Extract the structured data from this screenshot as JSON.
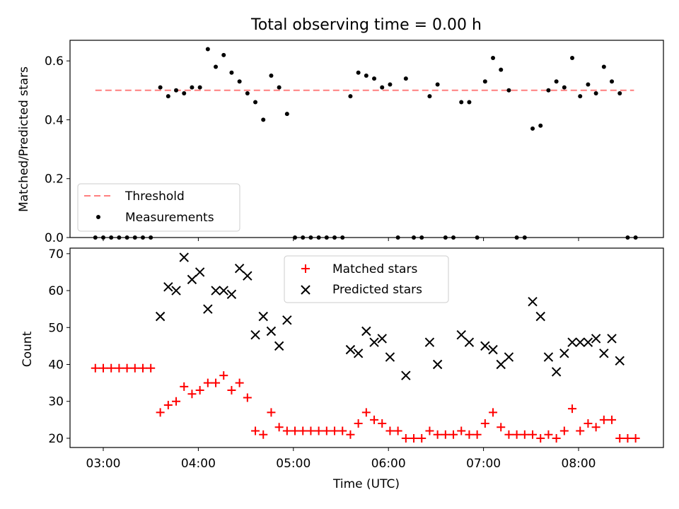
{
  "title": "Total observing time = 0.00 h",
  "chart_data": [
    {
      "type": "scatter",
      "ylabel": "Matched/Predicted stars",
      "ylim": [
        0,
        0.67
      ],
      "yticks": [
        0.0,
        0.2,
        0.4,
        0.6
      ],
      "ytick_labels": [
        "0.0",
        "0.2",
        "0.4",
        "0.6"
      ],
      "legend_position": "lower-left",
      "threshold": {
        "name": "Threshold",
        "value": 0.5,
        "x_start": "02:55",
        "x_end": "08:35",
        "color": "#ff7f7f"
      },
      "series": [
        {
          "name": "Measurements",
          "color": "#000000",
          "x": [
            "02:55",
            "03:00",
            "03:05",
            "03:10",
            "03:15",
            "03:20",
            "03:25",
            "03:30",
            "03:36",
            "03:41",
            "03:46",
            "03:51",
            "03:56",
            "04:01",
            "04:06",
            "04:11",
            "04:16",
            "04:21",
            "04:26",
            "04:31",
            "04:36",
            "04:41",
            "04:46",
            "04:51",
            "04:56",
            "05:01",
            "05:06",
            "05:11",
            "05:16",
            "05:21",
            "05:26",
            "05:31",
            "05:36",
            "05:41",
            "05:46",
            "05:51",
            "05:56",
            "06:01",
            "06:06",
            "06:11",
            "06:16",
            "06:21",
            "06:26",
            "06:31",
            "06:36",
            "06:41",
            "06:46",
            "06:51",
            "06:56",
            "07:01",
            "07:06",
            "07:11",
            "07:16",
            "07:21",
            "07:26",
            "07:31",
            "07:36",
            "07:41",
            "07:46",
            "07:51",
            "07:56",
            "08:01",
            "08:06",
            "08:11",
            "08:16",
            "08:21",
            "08:26",
            "08:31",
            "08:36"
          ],
          "y": [
            0.0,
            0.0,
            0.0,
            0.0,
            0.0,
            0.0,
            0.0,
            0.0,
            0.51,
            0.48,
            0.5,
            0.49,
            0.51,
            0.51,
            0.64,
            0.58,
            0.62,
            0.56,
            0.53,
            0.49,
            0.46,
            0.4,
            0.55,
            0.51,
            0.42,
            0.0,
            0.0,
            0.0,
            0.0,
            0.0,
            0.0,
            0.0,
            0.48,
            0.56,
            0.55,
            0.54,
            0.51,
            0.52,
            0.0,
            0.54,
            0.0,
            0.0,
            0.48,
            0.52,
            0.0,
            0.0,
            0.46,
            0.46,
            0.0,
            0.53,
            0.61,
            0.57,
            0.5,
            0.0,
            0.0,
            0.37,
            0.38,
            0.5,
            0.53,
            0.51,
            0.61,
            0.48,
            0.52,
            0.49,
            0.58,
            0.53,
            0.49,
            0.0,
            0.0
          ]
        }
      ]
    },
    {
      "type": "scatter",
      "xlabel": "Time (UTC)",
      "ylabel": "Count",
      "ylim": [
        17.5,
        71.5
      ],
      "yticks": [
        20,
        30,
        40,
        50,
        60,
        70
      ],
      "ytick_labels": [
        "20",
        "30",
        "40",
        "50",
        "60",
        "70"
      ],
      "x_ticks": [
        "03:00",
        "04:00",
        "05:00",
        "06:00",
        "07:00",
        "08:00"
      ],
      "legend_position": "upper-center",
      "series": [
        {
          "name": "Matched stars",
          "marker": "plus",
          "color": "#ff0000",
          "x": [
            "02:55",
            "03:00",
            "03:05",
            "03:10",
            "03:15",
            "03:20",
            "03:25",
            "03:30",
            "03:36",
            "03:41",
            "03:46",
            "03:51",
            "03:56",
            "04:01",
            "04:06",
            "04:11",
            "04:16",
            "04:21",
            "04:26",
            "04:31",
            "04:36",
            "04:41",
            "04:46",
            "04:51",
            "04:56",
            "05:01",
            "05:06",
            "05:11",
            "05:16",
            "05:21",
            "05:26",
            "05:31",
            "05:36",
            "05:41",
            "05:46",
            "05:51",
            "05:56",
            "06:01",
            "06:06",
            "06:11",
            "06:16",
            "06:21",
            "06:26",
            "06:31",
            "06:36",
            "06:41",
            "06:46",
            "06:51",
            "06:56",
            "07:01",
            "07:06",
            "07:11",
            "07:16",
            "07:21",
            "07:26",
            "07:31",
            "07:36",
            "07:41",
            "07:46",
            "07:51",
            "07:56",
            "08:01",
            "08:06",
            "08:11",
            "08:16",
            "08:21",
            "08:26",
            "08:31",
            "08:36"
          ],
          "y": [
            39,
            39,
            39,
            39,
            39,
            39,
            39,
            39,
            27,
            29,
            30,
            34,
            32,
            33,
            35,
            35,
            37,
            33,
            35,
            31,
            22,
            21,
            27,
            23,
            22,
            22,
            22,
            22,
            22,
            22,
            22,
            22,
            21,
            24,
            27,
            25,
            24,
            22,
            22,
            20,
            20,
            20,
            22,
            21,
            21,
            21,
            22,
            21,
            21,
            24,
            27,
            23,
            21,
            21,
            21,
            21,
            20,
            21,
            20,
            22,
            28,
            22,
            24,
            23,
            25,
            25,
            20,
            20,
            20
          ]
        },
        {
          "name": "Predicted stars",
          "marker": "x",
          "color": "#000000",
          "x": [
            "03:36",
            "03:41",
            "03:46",
            "03:51",
            "03:56",
            "04:01",
            "04:06",
            "04:11",
            "04:16",
            "04:21",
            "04:26",
            "04:31",
            "04:36",
            "04:41",
            "04:46",
            "04:51",
            "04:56",
            "05:36",
            "05:41",
            "05:46",
            "05:51",
            "05:56",
            "06:01",
            "06:11",
            "06:26",
            "06:31",
            "06:46",
            "06:51",
            "07:01",
            "07:06",
            "07:11",
            "07:16",
            "07:31",
            "07:36",
            "07:41",
            "07:46",
            "07:51",
            "07:56",
            "08:01",
            "08:06",
            "08:11",
            "08:16",
            "08:21",
            "08:26"
          ],
          "y": [
            53,
            61,
            60,
            69,
            63,
            65,
            55,
            60,
            60,
            59,
            66,
            64,
            48,
            53,
            49,
            45,
            52,
            44,
            43,
            49,
            46,
            47,
            42,
            37,
            46,
            40,
            48,
            46,
            45,
            44,
            40,
            42,
            57,
            53,
            42,
            38,
            43,
            46,
            46,
            46,
            47,
            43,
            47,
            41
          ]
        }
      ]
    }
  ]
}
